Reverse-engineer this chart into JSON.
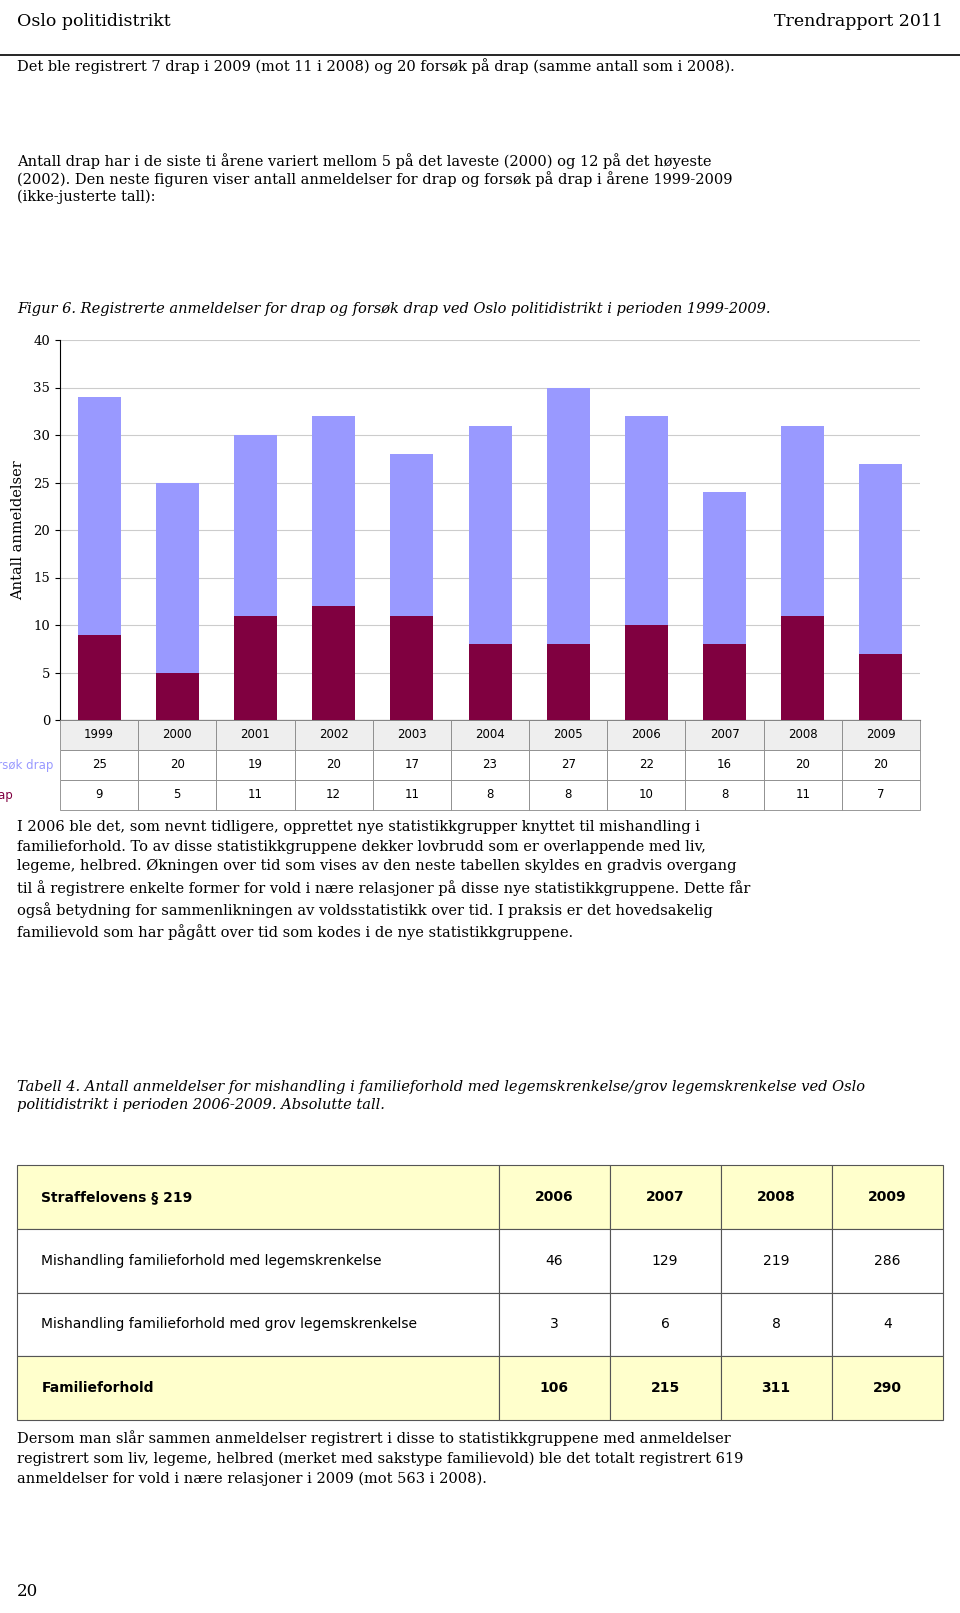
{
  "years": [
    1999,
    2000,
    2001,
    2002,
    2003,
    2004,
    2005,
    2006,
    2007,
    2008,
    2009
  ],
  "forsok_drap": [
    25,
    20,
    19,
    20,
    17,
    23,
    27,
    22,
    16,
    20,
    20
  ],
  "drap": [
    9,
    5,
    11,
    12,
    11,
    8,
    8,
    10,
    8,
    11,
    7
  ],
  "forsok_color": "#9999FF",
  "drap_color": "#800040",
  "ylabel": "Antall anmeldelser",
  "ylim": [
    0,
    40
  ],
  "yticks": [
    0,
    5,
    10,
    15,
    20,
    25,
    30,
    35,
    40
  ],
  "legend_forsok": "Forsøk drap",
  "legend_drap": "Drap",
  "background_color": "#FFFFFF",
  "grid_color": "#CCCCCC",
  "bar_width": 0.55,
  "figure_width": 9.6,
  "figure_height": 16.13,
  "header_left": "Oslo politidistrikt",
  "header_right": "Trendrapport 2011",
  "body1_line1": "Det ble registrert 7 drap i 2009 (mot 11 i 2008) og 20 forsøk på drap (samme antall som i 2008).",
  "body1_line2": "Antall drap har i de siste ti årene variert mellom 5 på det laveste (2000) og 12 på det høyeste\n(2002). Den neste figuren viser antall anmeldelser for drap og forsøk på drap i årene 1999-2009\n(ikke-justerte tall):",
  "fig_caption": "Figur 6. Registrerte anmeldelser for drap og forsøk drap ved Oslo politidistrikt i perioden 1999-2009.",
  "body2": "I 2006 ble det, som nevnt tidligere, opprettet nye statistikkgrupper knyttet til mishandling i\nfamilieforhold. To av disse statistikkgruppene dekker lovbrudd som er overlappende med liv,\nlegeme, helbred. Økningen over tid som vises av den neste tabellen skyldes en gradvis overgang\ntil å registrere enkelte former for vold i nære relasjoner på disse nye statistikkgruppene. Dette får\nogså betydning for sammenlikningen av voldsstatistikk over tid. I praksis er det hovedsakelig\nfamilievold som har pågått over tid som kodes i de nye statistikkgruppene.",
  "table4_caption": "Tabell 4. Antall anmeldelser for mishandling i familieforhold med legemskrenkelse/grov legemskrenkelse ved Oslo\npolitidistrikt i perioden 2006-2009. Absolutte tall.",
  "t4_col0_header": "Straffelovens § 219",
  "t4_col_years": [
    "2006",
    "2007",
    "2008",
    "2009"
  ],
  "t4_row1_label": "Mishandling familieforhold med legemskrenkelse",
  "t4_row1_vals": [
    "46",
    "129",
    "219",
    "286"
  ],
  "t4_row2_label": "Mishandling familieforhold med grov legemskrenkelse",
  "t4_row2_vals": [
    "3",
    "6",
    "8",
    "4"
  ],
  "t4_row3_label": "Familieforhold",
  "t4_row3_vals": [
    "106",
    "215",
    "311",
    "290"
  ],
  "t4_header_bg": "#FFFFCC",
  "t4_row3_bg": "#FFFFCC",
  "t4_row_bg": "#FFFFFF",
  "body3": "Dersom man slår sammen anmeldelser registrert i disse to statistikkgruppene med anmeldelser\nregistrert som liv, legeme, helbred (merket med sakstype familievold) ble det totalt registrert 619\nanmeldelser for vold i nære relasjoner i 2009 (mot 563 i 2008).",
  "page_number": "20"
}
